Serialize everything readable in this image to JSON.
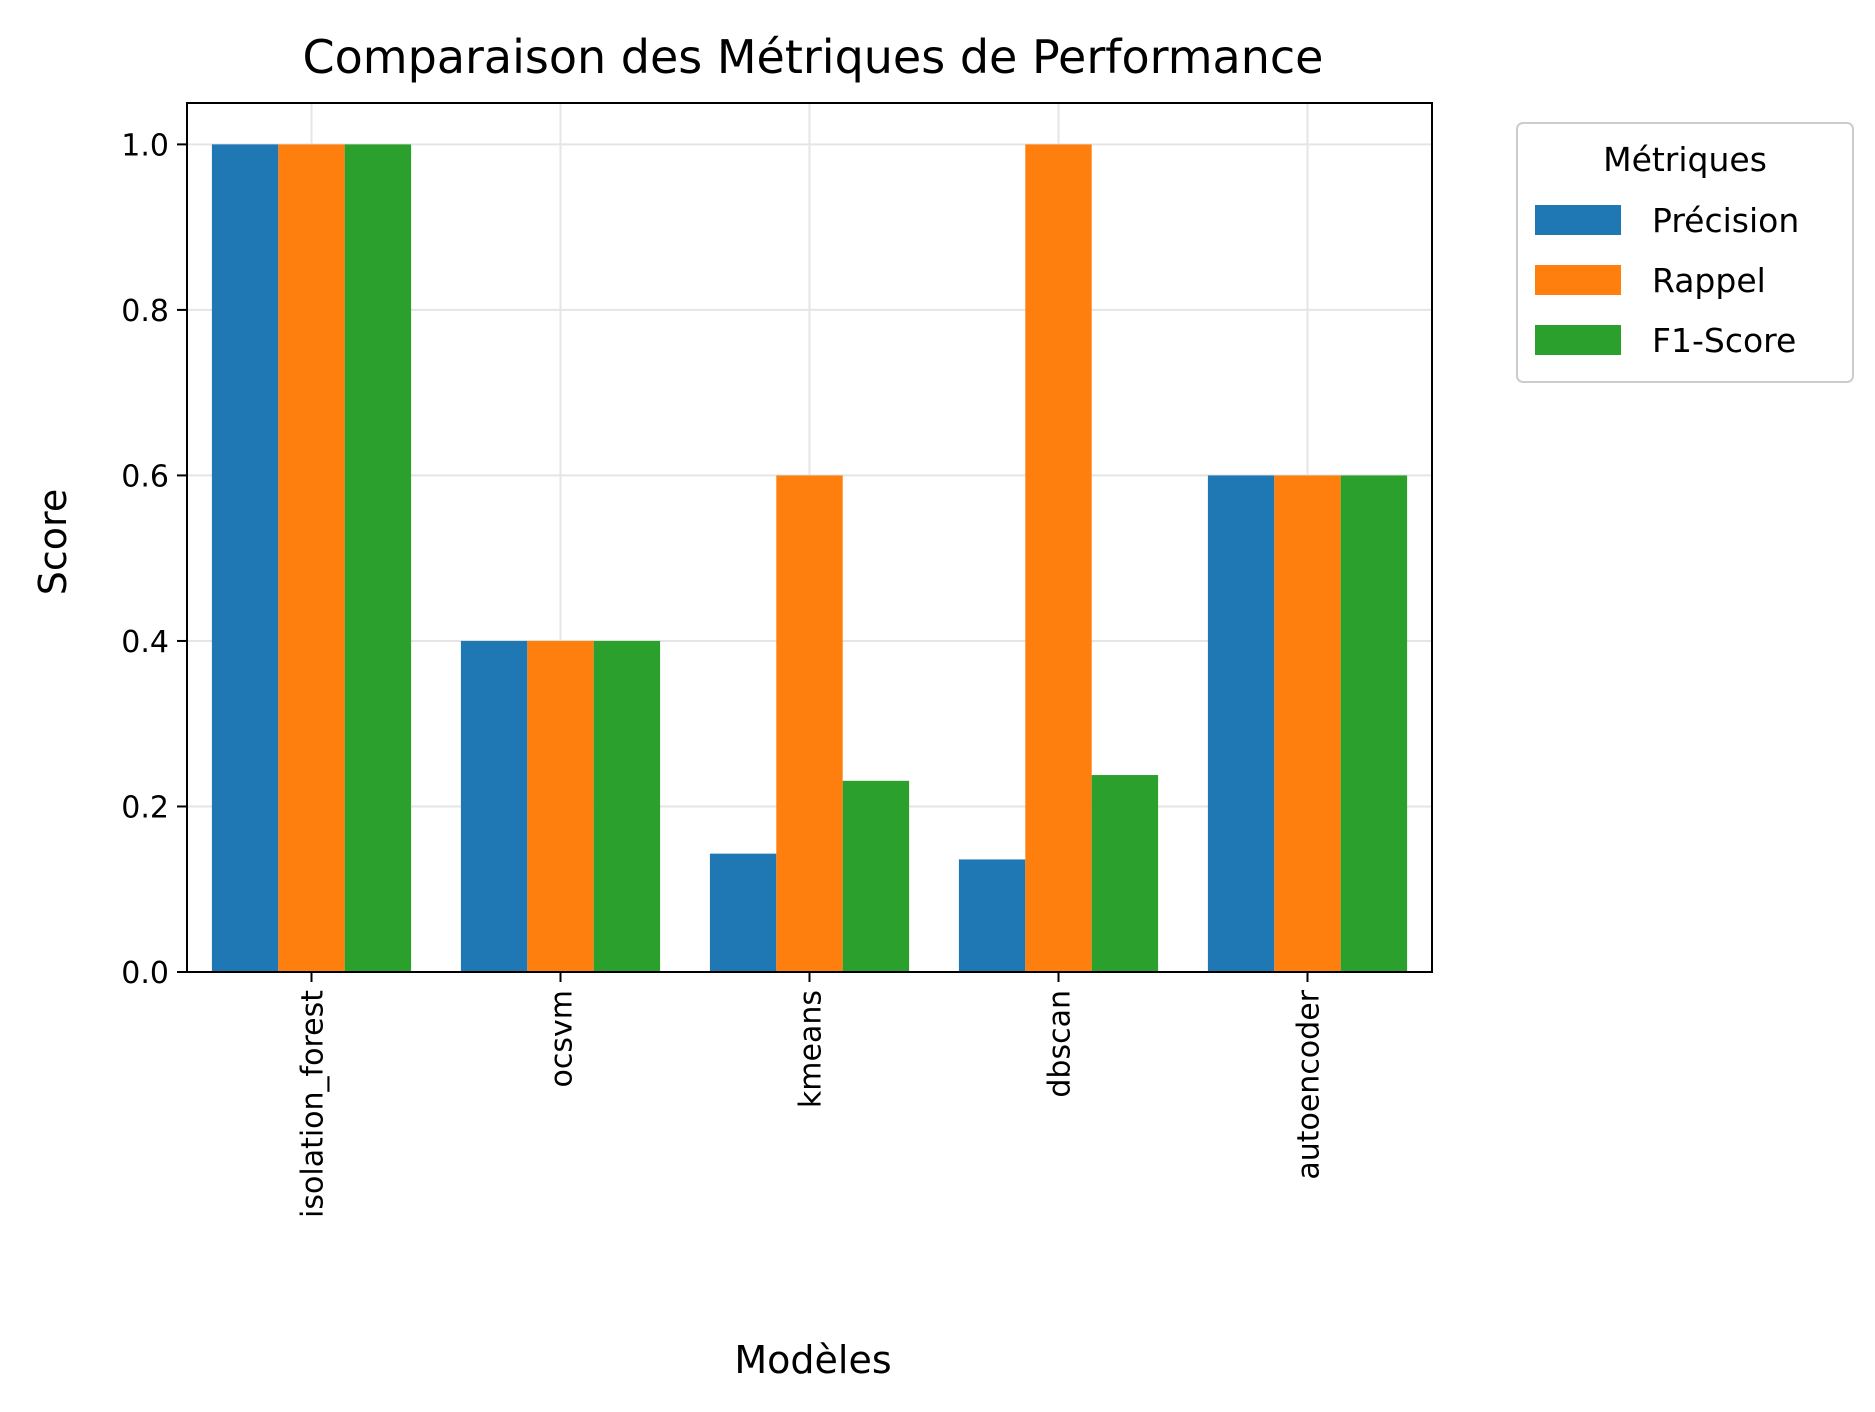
{
  "chart_data": {
    "type": "bar",
    "title": "Comparaison des Métriques de Performance",
    "xlabel": "Modèles",
    "ylabel": "Score",
    "categories": [
      "isolation_forest",
      "ocsvm",
      "kmeans",
      "dbscan",
      "autoencoder"
    ],
    "series": [
      {
        "name": "Précision",
        "color": "#1f77b4",
        "values": [
          1.0,
          0.4,
          0.143,
          0.136,
          0.6
        ]
      },
      {
        "name": "Rappel",
        "color": "#ff7f0e",
        "values": [
          1.0,
          0.4,
          0.6,
          1.0,
          0.6
        ]
      },
      {
        "name": "F1-Score",
        "color": "#2ca02c",
        "values": [
          1.0,
          0.4,
          0.231,
          0.238,
          0.6
        ]
      }
    ],
    "ylim": [
      0,
      1.05
    ],
    "yticks": [
      "0.0",
      "0.2",
      "0.4",
      "0.6",
      "0.8",
      "1.0"
    ],
    "grid": true,
    "legend": {
      "title": "Métriques",
      "placement": "outside-upper-right"
    }
  }
}
